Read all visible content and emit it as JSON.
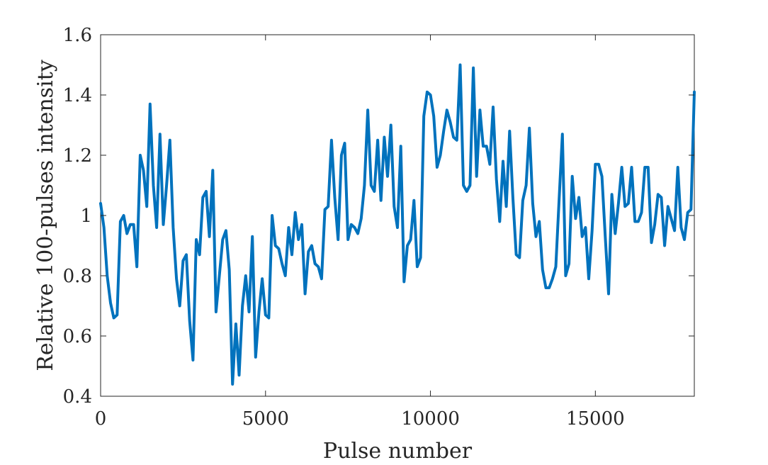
{
  "chart_data": {
    "type": "line",
    "title": "",
    "xlabel": "Pulse number",
    "ylabel": "Relative 100-pulses intensity",
    "xlim": [
      0,
      18000
    ],
    "ylim": [
      0.4,
      1.6
    ],
    "xticks": [
      0,
      5000,
      10000,
      15000
    ],
    "xtick_labels": [
      "0",
      "5000",
      "10000",
      "15000"
    ],
    "yticks": [
      0.4,
      0.6,
      0.8,
      1.0,
      1.2,
      1.4,
      1.6
    ],
    "ytick_labels": [
      "0.4",
      "0.6",
      "0.8",
      "1",
      "1.2",
      "1.4",
      "1.6"
    ],
    "grid": false,
    "legend": "none",
    "color": "#0072BD",
    "series": [
      {
        "x": [
          0,
          100,
          200,
          300,
          400,
          500,
          600,
          700,
          800,
          900,
          1000,
          1100,
          1200,
          1300,
          1400,
          1500,
          1600,
          1700,
          1800,
          1900,
          2000,
          2100,
          2200,
          2300,
          2400,
          2500,
          2600,
          2700,
          2800,
          2900,
          3000,
          3100,
          3200,
          3300,
          3400,
          3500,
          3600,
          3700,
          3800,
          3900,
          4000,
          4100,
          4200,
          4300,
          4400,
          4500,
          4600,
          4700,
          4800,
          4900,
          5000,
          5100,
          5200,
          5300,
          5400,
          5500,
          5600,
          5700,
          5800,
          5900,
          6000,
          6100,
          6200,
          6300,
          6400,
          6500,
          6600,
          6700,
          6800,
          6900,
          7000,
          7100,
          7200,
          7300,
          7400,
          7500,
          7600,
          7700,
          7800,
          7900,
          8000,
          8100,
          8200,
          8300,
          8400,
          8500,
          8600,
          8700,
          8800,
          8900,
          9000,
          9100,
          9200,
          9300,
          9400,
          9500,
          9600,
          9700,
          9800,
          9900,
          10000,
          10100,
          10200,
          10300,
          10400,
          10500,
          10600,
          10700,
          10800,
          10900,
          11000,
          11100,
          11200,
          11300,
          11400,
          11500,
          11600,
          11700,
          11800,
          11900,
          12000,
          12100,
          12200,
          12300,
          12400,
          12500,
          12600,
          12700,
          12800,
          12900,
          13000,
          13100,
          13200,
          13300,
          13400,
          13500,
          13600,
          13700,
          13800,
          13900,
          14000,
          14100,
          14200,
          14300,
          14400,
          14500,
          14600,
          14700,
          14800,
          14900,
          15000,
          15100,
          15200,
          15300,
          15400,
          15500,
          15600,
          15700,
          15800,
          15900,
          16000,
          16100,
          16200,
          16300,
          16400,
          16500,
          16600,
          16700,
          16800,
          16900,
          17000,
          17100,
          17200,
          17300,
          17400,
          17500,
          17600,
          17700,
          17800,
          17900,
          18000
        ],
        "values": [
          1.04,
          0.96,
          0.8,
          0.71,
          0.66,
          0.67,
          0.98,
          1.0,
          0.94,
          0.97,
          0.97,
          0.83,
          1.2,
          1.15,
          1.03,
          1.37,
          1.1,
          0.96,
          1.27,
          0.97,
          1.1,
          1.25,
          0.96,
          0.79,
          0.7,
          0.85,
          0.87,
          0.65,
          0.52,
          0.92,
          0.87,
          1.06,
          1.08,
          0.93,
          1.15,
          0.68,
          0.8,
          0.92,
          0.95,
          0.82,
          0.44,
          0.64,
          0.47,
          0.7,
          0.8,
          0.68,
          0.93,
          0.53,
          0.68,
          0.79,
          0.67,
          0.66,
          1.0,
          0.9,
          0.89,
          0.84,
          0.8,
          0.96,
          0.87,
          1.01,
          0.92,
          0.97,
          0.74,
          0.88,
          0.9,
          0.84,
          0.83,
          0.79,
          1.02,
          1.03,
          1.25,
          1.06,
          0.92,
          1.2,
          1.24,
          0.92,
          0.97,
          0.96,
          0.94,
          0.99,
          1.1,
          1.35,
          1.1,
          1.08,
          1.25,
          1.05,
          1.26,
          1.13,
          1.3,
          1.03,
          0.96,
          1.23,
          0.78,
          0.9,
          0.92,
          1.05,
          0.83,
          0.86,
          1.33,
          1.41,
          1.4,
          1.33,
          1.16,
          1.2,
          1.28,
          1.35,
          1.31,
          1.26,
          1.25,
          1.5,
          1.1,
          1.08,
          1.1,
          1.49,
          1.13,
          1.35,
          1.23,
          1.23,
          1.17,
          1.36,
          1.12,
          0.98,
          1.18,
          1.03,
          1.28,
          1.06,
          0.87,
          0.86,
          1.05,
          1.1,
          1.29,
          1.04,
          0.93,
          0.98,
          0.82,
          0.76,
          0.76,
          0.79,
          0.83,
          1.05,
          1.27,
          0.8,
          0.84,
          1.13,
          0.99,
          1.06,
          0.93,
          0.96,
          0.79,
          0.95,
          1.17,
          1.17,
          1.13,
          0.93,
          0.74,
          1.07,
          0.94,
          1.04,
          1.16,
          1.03,
          1.04,
          1.16,
          0.98,
          0.98,
          1.01,
          1.16,
          1.16,
          0.91,
          0.97,
          1.07,
          1.06,
          0.9,
          1.03,
          0.99,
          0.95,
          1.16,
          0.96,
          0.92,
          1.01,
          1.02,
          1.41
        ]
      }
    ]
  }
}
